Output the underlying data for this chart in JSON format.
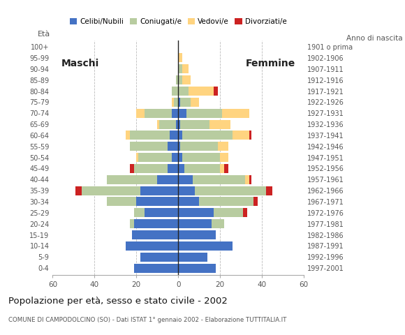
{
  "age_groups": [
    "0-4",
    "5-9",
    "10-14",
    "15-19",
    "20-24",
    "25-29",
    "30-34",
    "35-39",
    "40-44",
    "45-49",
    "50-54",
    "55-59",
    "60-64",
    "65-69",
    "70-74",
    "75-79",
    "80-84",
    "85-89",
    "90-94",
    "95-99",
    "100+"
  ],
  "birth_years": [
    "1997-2001",
    "1992-1996",
    "1987-1991",
    "1982-1986",
    "1977-1981",
    "1972-1976",
    "1967-1971",
    "1962-1966",
    "1957-1961",
    "1952-1956",
    "1947-1951",
    "1942-1946",
    "1937-1941",
    "1932-1936",
    "1927-1931",
    "1922-1926",
    "1917-1921",
    "1912-1916",
    "1907-1911",
    "1902-1906",
    "1901 o prima"
  ],
  "males": {
    "celibi": [
      21,
      18,
      25,
      22,
      21,
      16,
      20,
      18,
      10,
      5,
      3,
      5,
      4,
      1,
      3,
      0,
      0,
      0,
      0,
      0,
      0
    ],
    "coniugati": [
      0,
      0,
      0,
      0,
      2,
      5,
      14,
      28,
      24,
      16,
      16,
      18,
      19,
      8,
      13,
      2,
      3,
      1,
      0,
      0,
      0
    ],
    "vedovi": [
      0,
      0,
      0,
      0,
      0,
      0,
      0,
      0,
      0,
      0,
      1,
      0,
      2,
      1,
      4,
      1,
      0,
      0,
      0,
      0,
      0
    ],
    "divorziati": [
      0,
      0,
      0,
      0,
      0,
      0,
      0,
      3,
      0,
      2,
      0,
      0,
      0,
      0,
      0,
      0,
      0,
      0,
      0,
      0,
      0
    ]
  },
  "females": {
    "nubili": [
      18,
      14,
      26,
      18,
      16,
      17,
      10,
      8,
      7,
      3,
      2,
      1,
      2,
      1,
      4,
      1,
      0,
      0,
      0,
      0,
      0
    ],
    "coniugate": [
      0,
      0,
      0,
      0,
      6,
      14,
      26,
      34,
      25,
      17,
      18,
      18,
      24,
      14,
      17,
      5,
      5,
      2,
      2,
      0,
      0
    ],
    "vedove": [
      0,
      0,
      0,
      0,
      0,
      0,
      0,
      0,
      2,
      2,
      4,
      5,
      8,
      10,
      13,
      4,
      12,
      4,
      3,
      2,
      0
    ],
    "divorziate": [
      0,
      0,
      0,
      0,
      0,
      2,
      2,
      3,
      1,
      2,
      0,
      0,
      1,
      0,
      0,
      0,
      2,
      0,
      0,
      0,
      0
    ]
  },
  "colors": {
    "celibi": "#4472c4",
    "coniugati": "#b8cca0",
    "vedovi": "#ffd480",
    "divorziati": "#cc2222"
  },
  "title": "Popolazione per età, sesso e stato civile - 2002",
  "subtitle": "COMUNE DI CAMPODOLCINO (SO) - Dati ISTAT 1° gennaio 2002 - Elaborazione TUTTITALIA.IT",
  "xlabel_left": "Maschi",
  "xlabel_right": "Femmine",
  "ylabel_left": "Età",
  "ylabel_right": "Anno di nascita",
  "xlim": 60,
  "legend_labels": [
    "Celibi/Nubili",
    "Coniugati/e",
    "Vedovi/e",
    "Divorziati/e"
  ],
  "bg_color": "#ffffff",
  "grid_color": "#bbbbbb"
}
